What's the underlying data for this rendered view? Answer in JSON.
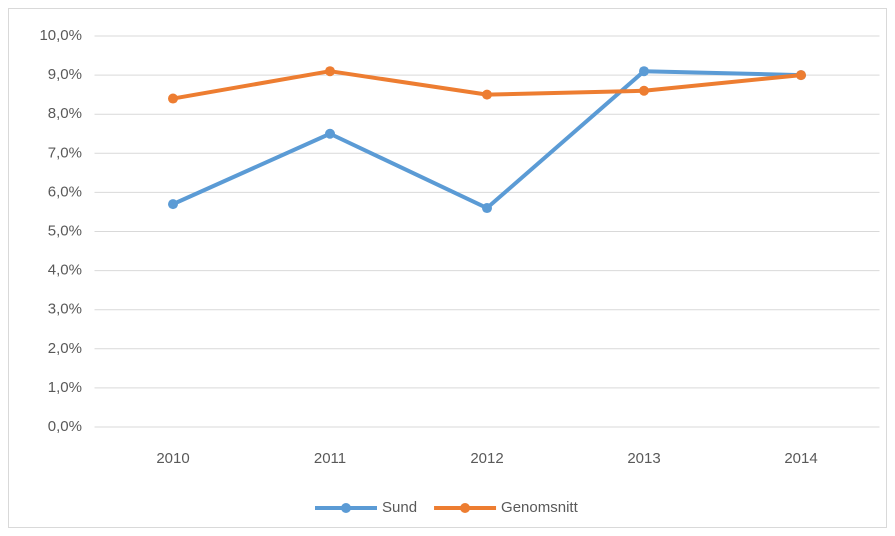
{
  "chart_data": {
    "type": "line",
    "categories": [
      "2010",
      "2011",
      "2012",
      "2013",
      "2014"
    ],
    "series": [
      {
        "name": "Sund",
        "color": "#5b9bd5",
        "values": [
          5.7,
          7.5,
          5.6,
          9.1,
          9.0
        ]
      },
      {
        "name": "Genomsnitt",
        "color": "#ed7d31",
        "values": [
          8.4,
          9.1,
          8.5,
          8.6,
          9.0
        ]
      }
    ],
    "ylim": [
      0,
      10
    ],
    "yticks": [
      {
        "value": 0,
        "label": "0,0%"
      },
      {
        "value": 1,
        "label": "1,0%"
      },
      {
        "value": 2,
        "label": "2,0%"
      },
      {
        "value": 3,
        "label": "3,0%"
      },
      {
        "value": 4,
        "label": "4,0%"
      },
      {
        "value": 5,
        "label": "5,0%"
      },
      {
        "value": 6,
        "label": "6,0%"
      },
      {
        "value": 7,
        "label": "7,0%"
      },
      {
        "value": 8,
        "label": "8,0%"
      },
      {
        "value": 9,
        "label": "9,0%"
      },
      {
        "value": 10,
        "label": "10,0%"
      }
    ],
    "grid": true,
    "legend": "bottom"
  }
}
